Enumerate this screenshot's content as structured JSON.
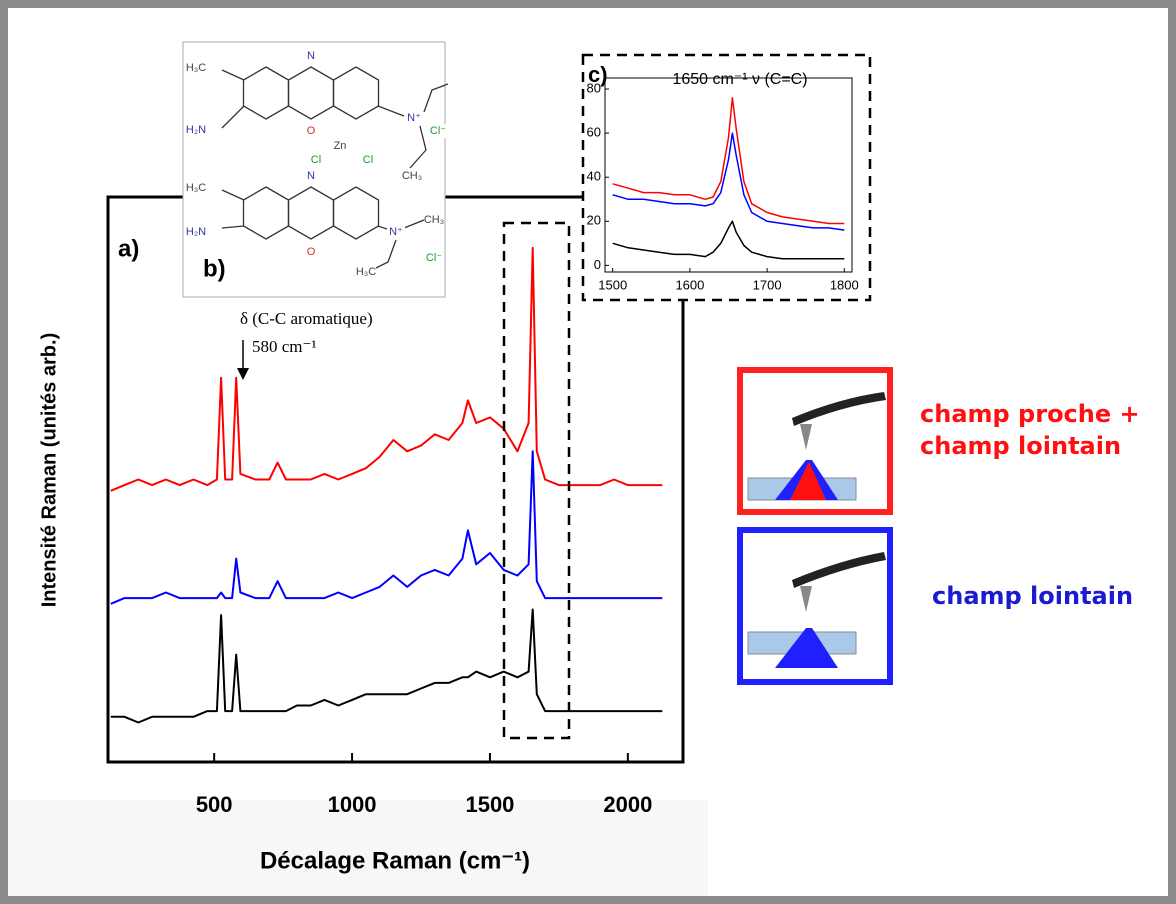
{
  "chart_data": [
    {
      "type": "line",
      "x_label": "Décalage Raman (cm⁻¹)",
      "y_label": "Intensité Raman (unités arb.)",
      "annotations": [
        "a)",
        "δ (C-C aromatique)",
        "580 cm⁻¹"
      ],
      "xlim": [
        115,
        2200
      ],
      "xticks": [
        500,
        1000,
        1500,
        2000
      ],
      "ylim": [
        0,
        100
      ],
      "x": [
        125,
        175,
        225,
        275,
        325,
        375,
        425,
        475,
        510,
        525,
        540,
        565,
        580,
        595,
        650,
        700,
        730,
        760,
        800,
        850,
        900,
        950,
        1000,
        1050,
        1100,
        1150,
        1200,
        1250,
        1300,
        1350,
        1400,
        1420,
        1450,
        1500,
        1550,
        1600,
        1640,
        1655,
        1670,
        1700,
        1750,
        1800,
        1850,
        1900,
        1950,
        2000,
        2050,
        2100,
        2125
      ],
      "series": [
        {
          "name": "champ proche + champ lointain",
          "color": "#ff0000",
          "values": [
            48,
            49,
            50,
            49,
            50,
            49,
            50,
            49,
            50,
            68,
            50,
            50,
            68,
            51,
            50,
            50,
            53,
            50,
            50,
            50,
            51,
            50,
            51,
            52,
            54,
            57,
            55,
            56,
            58,
            57,
            60,
            64,
            60,
            61,
            59,
            55,
            60,
            91,
            55,
            50,
            49,
            49,
            49,
            49,
            50,
            49,
            49,
            49,
            49
          ]
        },
        {
          "name": "champ lointain",
          "color": "#0000ff",
          "values": [
            28,
            29,
            29,
            29,
            30,
            29,
            29,
            29,
            29,
            30,
            29,
            29,
            36,
            30,
            29,
            29,
            32,
            29,
            29,
            29,
            29,
            30,
            29,
            30,
            31,
            33,
            31,
            33,
            34,
            33,
            36,
            41,
            35,
            37,
            34,
            33,
            35,
            55,
            32,
            29,
            29,
            29,
            29,
            29,
            29,
            29,
            29,
            29,
            29
          ]
        },
        {
          "color": "#000000",
          "values": [
            8,
            8,
            7,
            8,
            8,
            8,
            8,
            9,
            9,
            26,
            9,
            9,
            19,
            9,
            9,
            9,
            9,
            9,
            10,
            10,
            11,
            10,
            11,
            12,
            12,
            12,
            12,
            13,
            14,
            14,
            15,
            15,
            16,
            15,
            16,
            15,
            16,
            27,
            12,
            9,
            9,
            9,
            9,
            9,
            9,
            9,
            9,
            9,
            9
          ]
        }
      ]
    },
    {
      "type": "line",
      "label": "c)",
      "title": "1650 cm⁻¹ ν (C=C)",
      "xlim": [
        1490,
        1810
      ],
      "xticks": [
        1500,
        1600,
        1700,
        1800
      ],
      "ylim": [
        -3,
        85
      ],
      "yticks": [
        0,
        20,
        40,
        60,
        80
      ],
      "x": [
        1500,
        1520,
        1540,
        1560,
        1580,
        1600,
        1620,
        1630,
        1640,
        1650,
        1655,
        1660,
        1670,
        1680,
        1700,
        1720,
        1740,
        1760,
        1780,
        1800
      ],
      "series": [
        {
          "color": "#ff0000",
          "values": [
            37,
            35,
            33,
            33,
            32,
            32,
            30,
            31,
            38,
            58,
            76,
            62,
            38,
            28,
            24,
            22,
            21,
            20,
            19,
            19
          ]
        },
        {
          "color": "#0000ff",
          "values": [
            32,
            30,
            30,
            29,
            28,
            28,
            27,
            28,
            33,
            48,
            60,
            50,
            32,
            24,
            20,
            19,
            18,
            17,
            17,
            16
          ]
        },
        {
          "color": "#000000",
          "values": [
            10,
            8,
            7,
            6,
            5,
            5,
            4,
            6,
            10,
            17,
            20,
            15,
            9,
            6,
            4,
            3,
            3,
            3,
            3,
            3
          ]
        }
      ]
    }
  ],
  "structure": {
    "label": "b)",
    "atoms": [
      "H₃C",
      "N",
      "H₂N",
      "O",
      "N⁺",
      "Cl⁻",
      "Zn",
      "Cl",
      "Cl",
      "CH₃",
      "H₃C",
      "N",
      "H₂N",
      "O",
      "N⁺",
      "CH₃",
      "H₃C",
      "Cl⁻"
    ]
  }
}
